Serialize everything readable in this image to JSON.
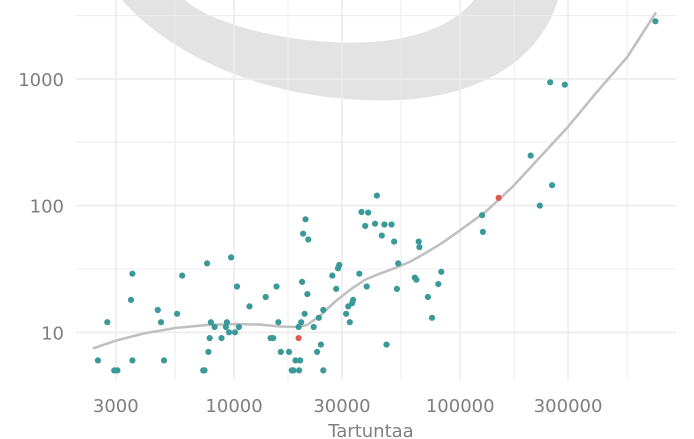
{
  "chart_data": {
    "type": "scatter",
    "title": "",
    "xlabel": "Tartuntaa",
    "ylabel": "",
    "x_scale": "log",
    "y_scale": "log",
    "xlim": [
      2000,
      900000
    ],
    "ylim": [
      4.2,
      4200
    ],
    "x_ticks": [
      {
        "value": 3000,
        "label": "3000"
      },
      {
        "value": 10000,
        "label": "10000"
      },
      {
        "value": 30000,
        "label": "30000"
      },
      {
        "value": 100000,
        "label": "100000"
      },
      {
        "value": 300000,
        "label": "300000"
      }
    ],
    "y_ticks": [
      {
        "value": 10,
        "label": "10"
      },
      {
        "value": 100,
        "label": "100"
      },
      {
        "value": 1000,
        "label": "1000"
      }
    ],
    "grid": true,
    "colors": {
      "points": "#3a9a98",
      "highlight": "#e05a4e",
      "trend": "#c0c0c0",
      "grid": "#ececec",
      "watermark": "#e3e3e3",
      "text": "#7f7f7f"
    },
    "points": [
      [
        2500,
        6
      ],
      [
        2750,
        12
      ],
      [
        2950,
        5
      ],
      [
        3050,
        5
      ],
      [
        3500,
        18
      ],
      [
        3550,
        29
      ],
      [
        3550,
        6
      ],
      [
        4600,
        15
      ],
      [
        4750,
        12
      ],
      [
        4900,
        6
      ],
      [
        5600,
        14
      ],
      [
        5900,
        28
      ],
      [
        7300,
        5
      ],
      [
        7400,
        5
      ],
      [
        7600,
        35
      ],
      [
        7700,
        7
      ],
      [
        7800,
        9
      ],
      [
        7900,
        12
      ],
      [
        8200,
        11
      ],
      [
        8800,
        9
      ],
      [
        9200,
        11
      ],
      [
        9300,
        12
      ],
      [
        9500,
        10
      ],
      [
        9700,
        39
      ],
      [
        10100,
        10
      ],
      [
        10300,
        23
      ],
      [
        10500,
        11
      ],
      [
        11700,
        16
      ],
      [
        13800,
        19
      ],
      [
        14500,
        9
      ],
      [
        14900,
        9
      ],
      [
        15400,
        23
      ],
      [
        15700,
        12
      ],
      [
        16100,
        7
      ],
      [
        17500,
        7
      ],
      [
        18000,
        5
      ],
      [
        18300,
        5
      ],
      [
        18700,
        6
      ],
      [
        19300,
        11
      ],
      [
        19400,
        5
      ],
      [
        19600,
        6
      ],
      [
        19800,
        12
      ],
      [
        20000,
        25
      ],
      [
        20200,
        60
      ],
      [
        20500,
        14
      ],
      [
        20700,
        78
      ],
      [
        21100,
        20
      ],
      [
        21300,
        54
      ],
      [
        22500,
        11
      ],
      [
        23300,
        7
      ],
      [
        23700,
        13
      ],
      [
        24200,
        8
      ],
      [
        24800,
        5
      ],
      [
        24800,
        15
      ],
      [
        27200,
        28
      ],
      [
        28300,
        22
      ],
      [
        28800,
        32
      ],
      [
        29200,
        34
      ],
      [
        31300,
        14
      ],
      [
        32000,
        16
      ],
      [
        32500,
        12
      ],
      [
        33300,
        17
      ],
      [
        33600,
        18
      ],
      [
        35800,
        29
      ],
      [
        36600,
        89
      ],
      [
        38000,
        69
      ],
      [
        38600,
        23
      ],
      [
        39200,
        88
      ],
      [
        42000,
        72
      ],
      [
        42800,
        120
      ],
      [
        45000,
        58
      ],
      [
        46200,
        71
      ],
      [
        47200,
        8
      ],
      [
        49700,
        71
      ],
      [
        51000,
        52
      ],
      [
        52500,
        22
      ],
      [
        53200,
        35
      ],
      [
        63000,
        27
      ],
      [
        64000,
        26
      ],
      [
        65500,
        52
      ],
      [
        66000,
        47
      ],
      [
        72000,
        19
      ],
      [
        75000,
        13
      ],
      [
        80000,
        24
      ],
      [
        82500,
        30
      ],
      [
        125000,
        84
      ],
      [
        126000,
        62
      ],
      [
        205000,
        248
      ],
      [
        225000,
        100
      ],
      [
        250000,
        940
      ],
      [
        255000,
        145
      ],
      [
        290000,
        900
      ],
      [
        730000,
        2850
      ]
    ],
    "highlight_points": [
      [
        19300,
        9
      ],
      [
        148000,
        115
      ]
    ],
    "trend_line": [
      [
        2400,
        7.5
      ],
      [
        3000,
        8.6
      ],
      [
        4000,
        9.8
      ],
      [
        5500,
        10.8
      ],
      [
        7500,
        11.4
      ],
      [
        10000,
        11.6
      ],
      [
        13000,
        11.5
      ],
      [
        16000,
        11.1
      ],
      [
        19000,
        11
      ],
      [
        21000,
        11.4
      ],
      [
        24000,
        13.5
      ],
      [
        28000,
        17.5
      ],
      [
        33000,
        22
      ],
      [
        38000,
        26
      ],
      [
        44000,
        29
      ],
      [
        50000,
        31.5
      ],
      [
        60000,
        36
      ],
      [
        70000,
        42
      ],
      [
        85000,
        52
      ],
      [
        100000,
        64
      ],
      [
        130000,
        90
      ],
      [
        170000,
        140
      ],
      [
        220000,
        230
      ],
      [
        300000,
        420
      ],
      [
        400000,
        780
      ],
      [
        550000,
        1500
      ],
      [
        730000,
        3300
      ]
    ]
  }
}
